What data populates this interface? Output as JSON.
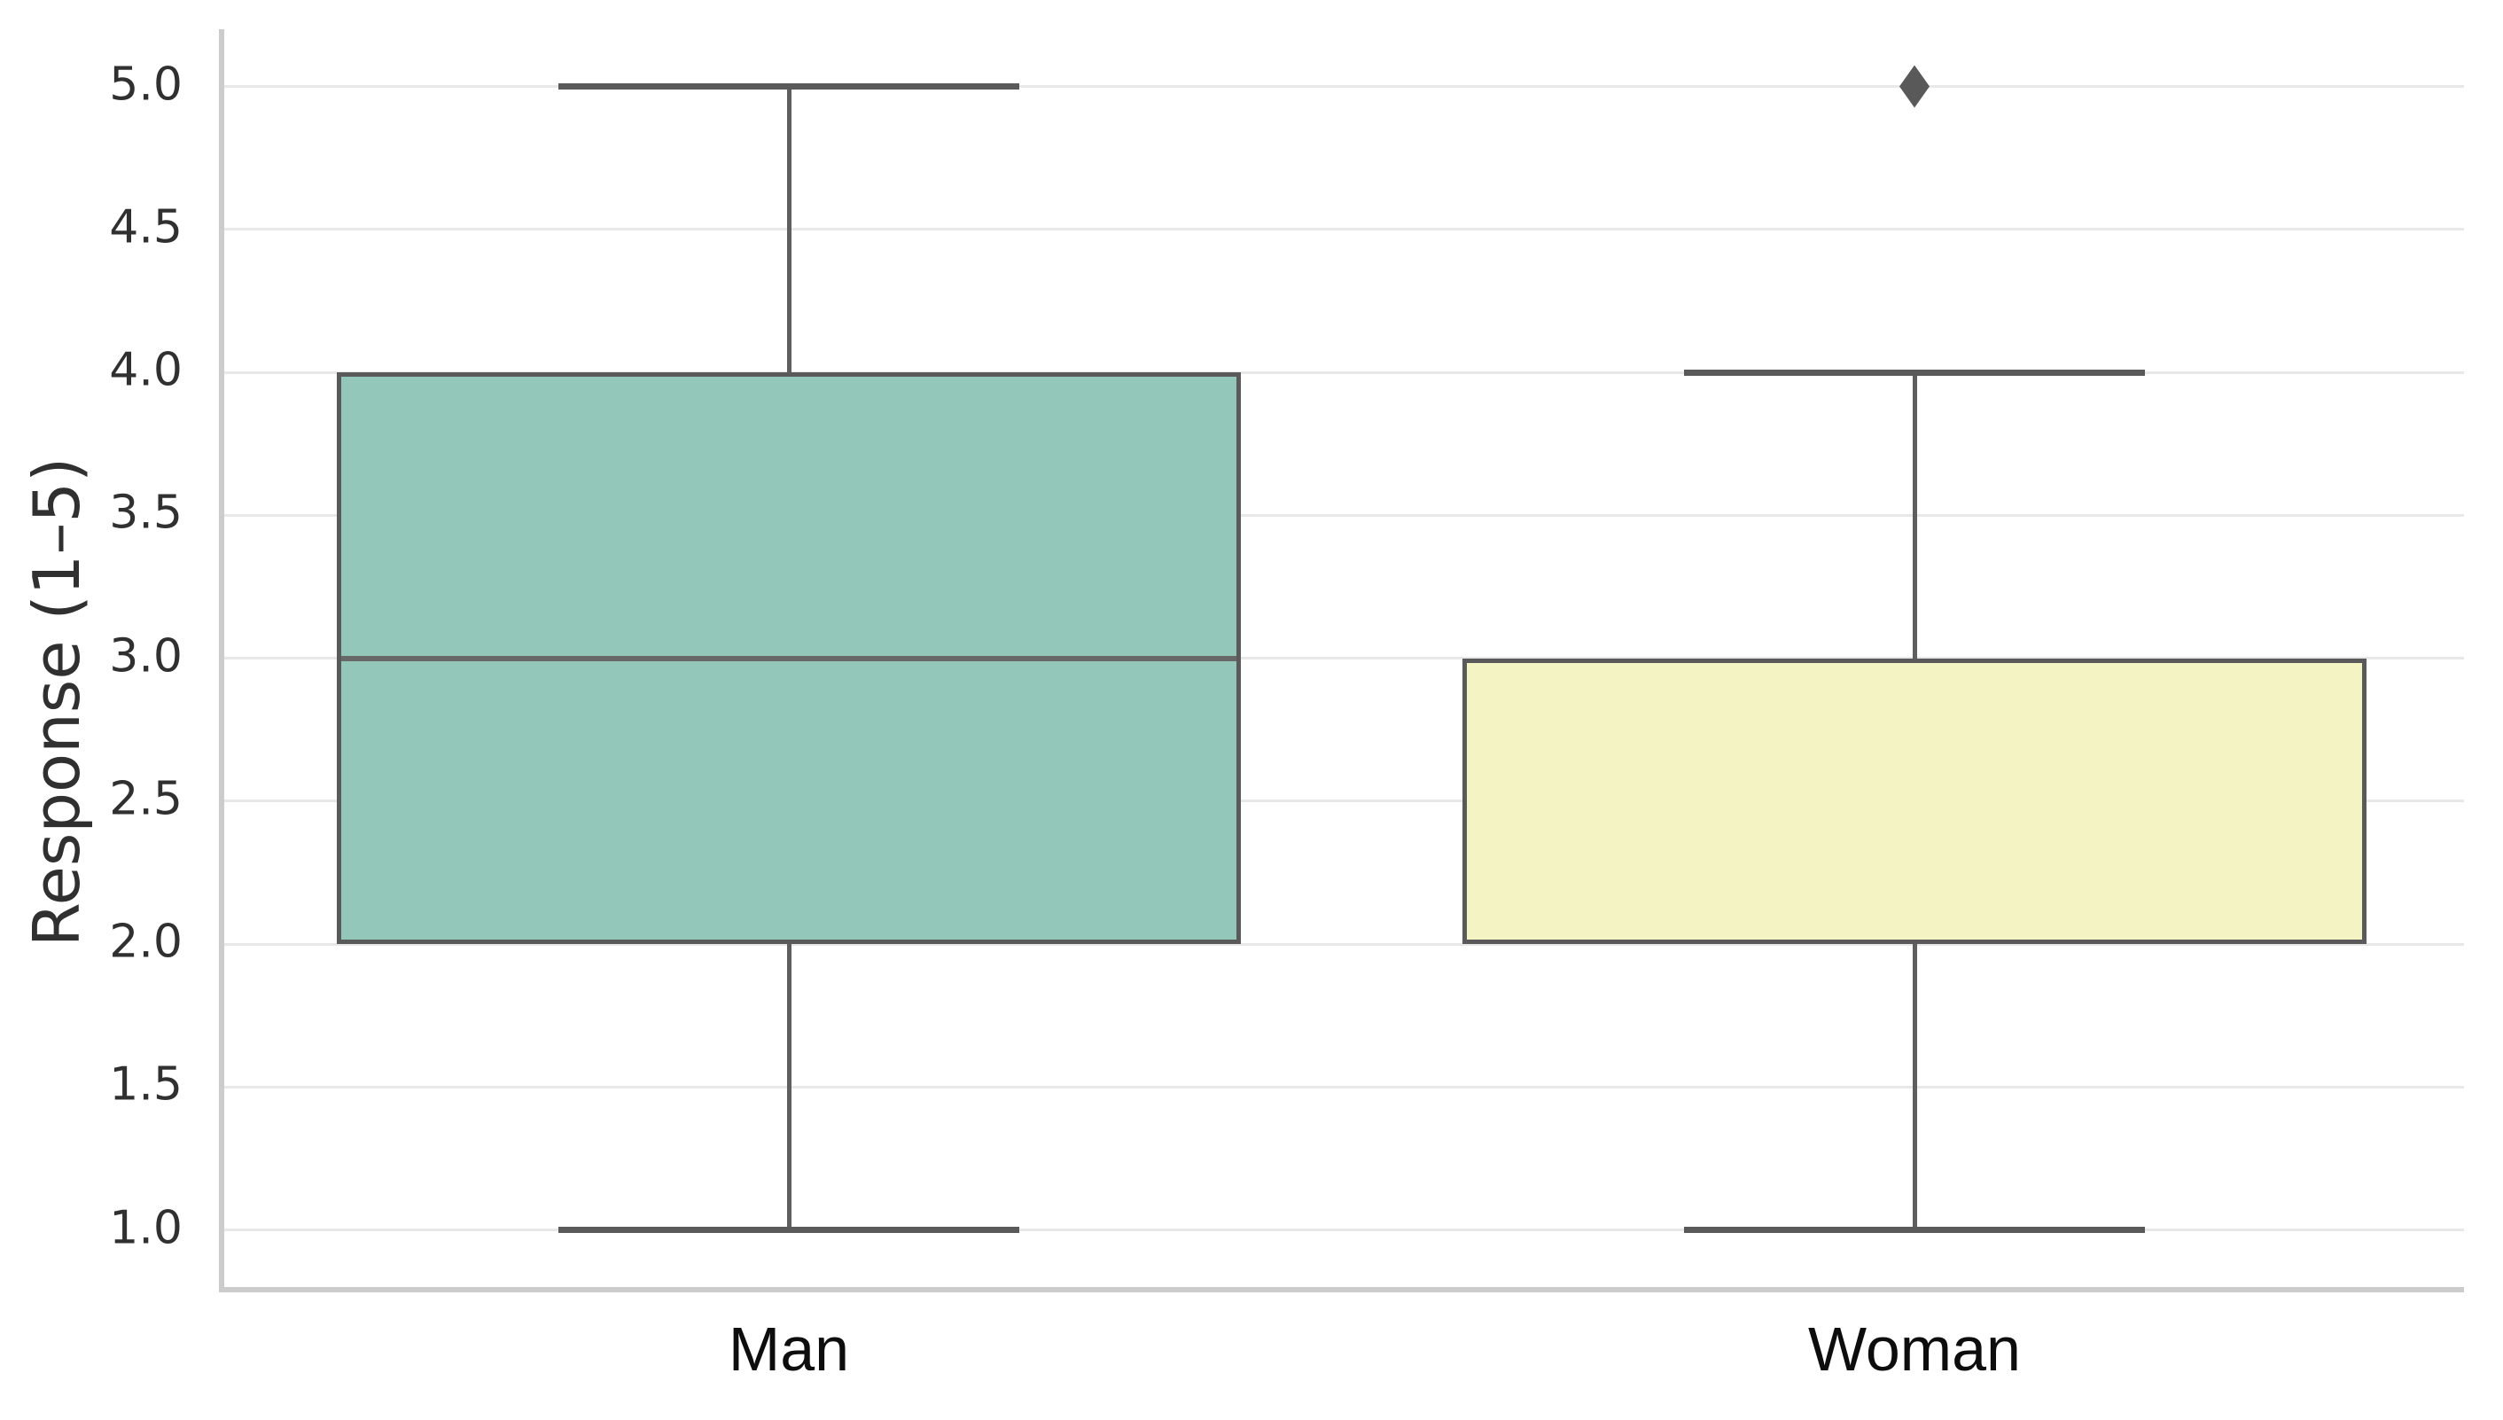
{
  "figure": {
    "background": "#ffffff"
  },
  "chart_data": {
    "type": "box",
    "title": "",
    "xlabel": "",
    "ylabel": "Response (1–5)",
    "categories": [
      "Man",
      "Woman"
    ],
    "yticks_labels": [
      "5.0",
      "4.5",
      "4.0",
      "3.5",
      "3.0",
      "2.5",
      "2.0",
      "1.5",
      "1.0"
    ],
    "yticks_values": [
      5.0,
      4.5,
      4.0,
      3.5,
      3.0,
      2.5,
      2.0,
      1.5,
      1.0
    ],
    "ylim": [
      0.8,
      5.2
    ],
    "grid": "horizontal",
    "legend": "none",
    "outlier_marker": "diamond",
    "series": [
      {
        "name": "Man",
        "whisker_low": 1.0,
        "q1": 2.0,
        "median": 3.0,
        "q3": 4.0,
        "whisker_high": 5.0,
        "outliers": [],
        "fill": "#93c7ba"
      },
      {
        "name": "Woman",
        "whisker_low": 1.0,
        "q1": 2.0,
        "median": null,
        "q3": 3.0,
        "whisker_high": 4.0,
        "outliers": [
          5.0
        ],
        "fill": "#f3f3c4"
      }
    ],
    "colors": {
      "box_edge": "#5a5a5a",
      "median_line": "#686868",
      "whisker": "#5f5f5f",
      "cap": "#5a5a5a",
      "outlier": "#595959",
      "gridline": "#e8e8e8",
      "spine": "#cccccc",
      "ytick_label": "#303030",
      "xtick_label": "#0d0d0d"
    }
  }
}
